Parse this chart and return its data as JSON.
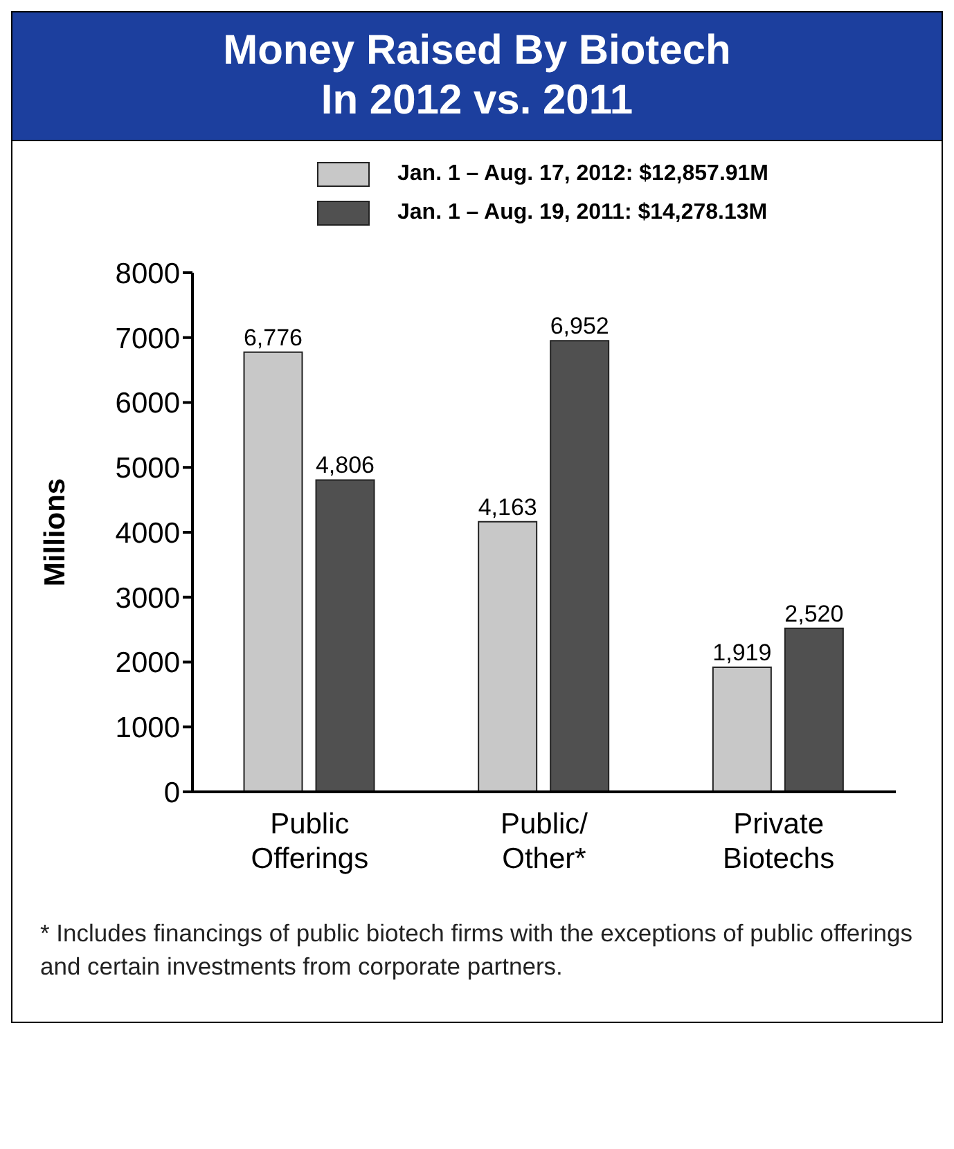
{
  "chart_data": {
    "type": "bar",
    "title": "Money Raised By Biotech In 2012 vs. 2011",
    "ylabel": "Millions",
    "categories": [
      "Public Offerings",
      "Public/ Other*",
      "Private Biotechs"
    ],
    "series": [
      {
        "name": "Jan. 1 – Aug. 17, 2012: $12,857.91M",
        "color": "#c8c8c8",
        "values": [
          6776,
          4163,
          1919
        ],
        "value_labels": [
          "6,776",
          "4,163",
          "1,919"
        ]
      },
      {
        "name": "Jan. 1 – Aug. 19, 2011: $14,278.13M",
        "color": "#505050",
        "values": [
          4806,
          6952,
          2520
        ],
        "value_labels": [
          "4,806",
          "6,952",
          "2,520"
        ]
      }
    ],
    "ylim": [
      0,
      8000
    ],
    "yticks": [
      0,
      1000,
      2000,
      3000,
      4000,
      5000,
      6000,
      7000,
      8000
    ],
    "legend": "top right",
    "annotations": [
      "* Includes financings of public biotech firms with the exceptions of public offerings and certain investments from corporate partners."
    ]
  }
}
